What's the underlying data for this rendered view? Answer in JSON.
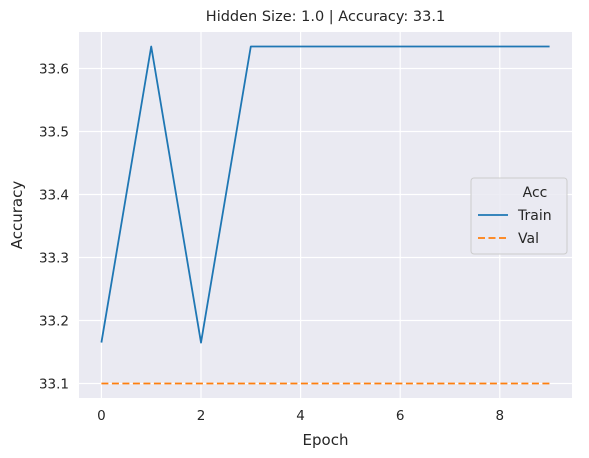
{
  "chart_data": {
    "type": "line",
    "title": "Hidden Size: 1.0 | Accuracy: 33.1",
    "xlabel": "Epoch",
    "ylabel": "Accuracy",
    "xlim": [
      -0.45,
      9.45
    ],
    "ylim": [
      33.077,
      33.658
    ],
    "xticks": [
      0,
      2,
      4,
      6,
      8
    ],
    "yticks": [
      33.1,
      33.2,
      33.3,
      33.4,
      33.5,
      33.6
    ],
    "grid": true,
    "x": [
      0,
      1,
      2,
      3,
      4,
      5,
      6,
      7,
      8,
      9
    ],
    "series": [
      {
        "name": "Train",
        "color": "#1f77b4",
        "style": "solid",
        "values": [
          33.165,
          33.635,
          33.165,
          33.635,
          33.635,
          33.635,
          33.635,
          33.635,
          33.635,
          33.635
        ]
      },
      {
        "name": "Val",
        "color": "#ff7f0e",
        "style": "dashed",
        "values": [
          33.1,
          33.1,
          33.1,
          33.1,
          33.1,
          33.1,
          33.1,
          33.1,
          33.1,
          33.1
        ]
      }
    ],
    "legend": {
      "title": "Acc",
      "placement": "center-right"
    }
  }
}
